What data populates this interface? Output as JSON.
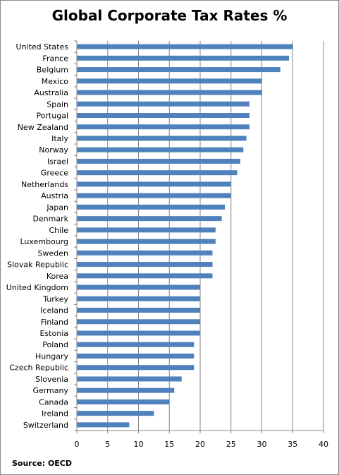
{
  "chart_data": {
    "type": "bar",
    "orientation": "horizontal",
    "title": "Global Corporate Tax Rates %",
    "categories": [
      "United States",
      "France",
      "Belgium",
      "Mexico",
      "Australia",
      "Spain",
      "Portugal",
      "New Zealand",
      "Italy",
      "Norway",
      "Israel",
      "Greece",
      "Netherlands",
      "Austria",
      "Japan",
      "Denmark",
      "Chile",
      "Luxembourg",
      "Sweden",
      "Slovak Republic",
      "Korea",
      "United Kingdom",
      "Turkey",
      "Iceland",
      "Finland",
      "Estonia",
      "Poland",
      "Hungary",
      "Czech Republic",
      "Slovenia",
      "Germany",
      "Canada",
      "Ireland",
      "Switzerland"
    ],
    "values": [
      35,
      34.4,
      33,
      30,
      30,
      28,
      28,
      28,
      27.5,
      27,
      26.5,
      26,
      25,
      25,
      24,
      23.5,
      22.5,
      22.5,
      22,
      22,
      22,
      20,
      20,
      20,
      20,
      20,
      19,
      19,
      19,
      17,
      15.8,
      15,
      12.5,
      8.5
    ],
    "xlim": [
      0,
      40
    ],
    "xticks": [
      0,
      5,
      10,
      15,
      20,
      25,
      30,
      35,
      40
    ],
    "grid": true,
    "bar_color": "#4f81bd",
    "grid_color": "#868686"
  },
  "source": "Source: OECD"
}
